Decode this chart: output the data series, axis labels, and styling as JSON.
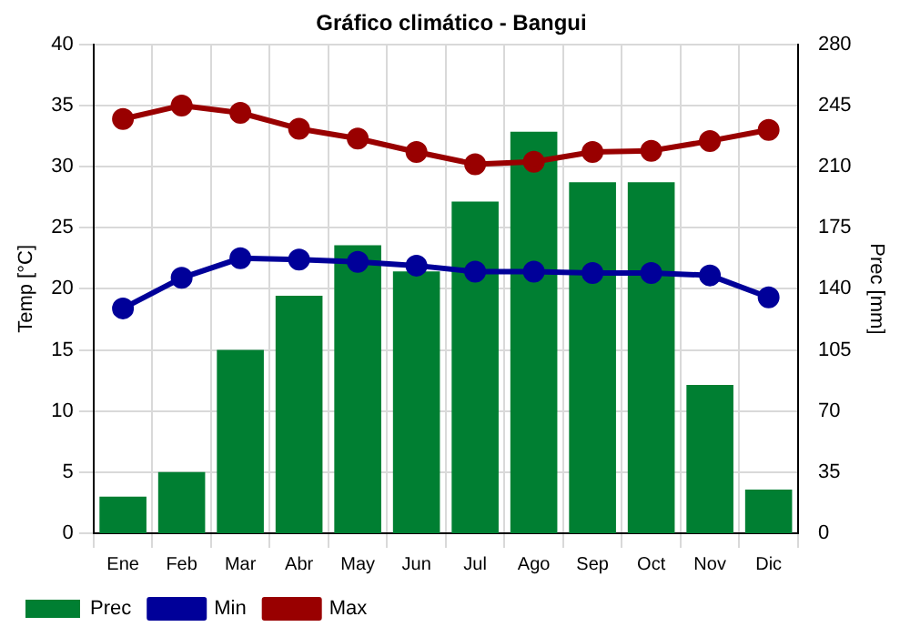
{
  "chart_data": {
    "type": "bar",
    "title": "Gráfico climático - Bangui",
    "categories": [
      "Ene",
      "Feb",
      "Mar",
      "Abr",
      "May",
      "Jun",
      "Jul",
      "Ago",
      "Sep",
      "Oct",
      "Nov",
      "Dic"
    ],
    "ylabel": "Temp [°C]",
    "y2label": "Prec [mm]",
    "ylim": [
      0,
      40
    ],
    "yticks": [
      0,
      5,
      10,
      15,
      20,
      25,
      30,
      35,
      40
    ],
    "y2lim": [
      0,
      280
    ],
    "y2ticks": [
      0,
      35,
      70,
      105,
      140,
      175,
      210,
      245,
      280
    ],
    "grid": true,
    "legend": "bottom",
    "marker": "circle",
    "series": [
      {
        "name": "Prec",
        "axis": "y2",
        "color": "#007f32",
        "values": [
          21,
          35,
          105,
          136,
          165,
          150,
          190,
          230,
          201,
          201,
          85,
          25
        ]
      },
      {
        "name": "Min",
        "type": "line",
        "color": "#000099",
        "values": [
          18.4,
          20.9,
          22.5,
          22.4,
          22.2,
          21.9,
          21.4,
          21.4,
          21.3,
          21.3,
          21.1,
          19.3
        ]
      },
      {
        "name": "Max",
        "type": "line",
        "color": "#990000",
        "values": [
          33.9,
          35,
          34.4,
          33.1,
          32.3,
          31.2,
          30.2,
          30.4,
          31.2,
          31.3,
          32.1,
          33.0
        ]
      }
    ]
  }
}
